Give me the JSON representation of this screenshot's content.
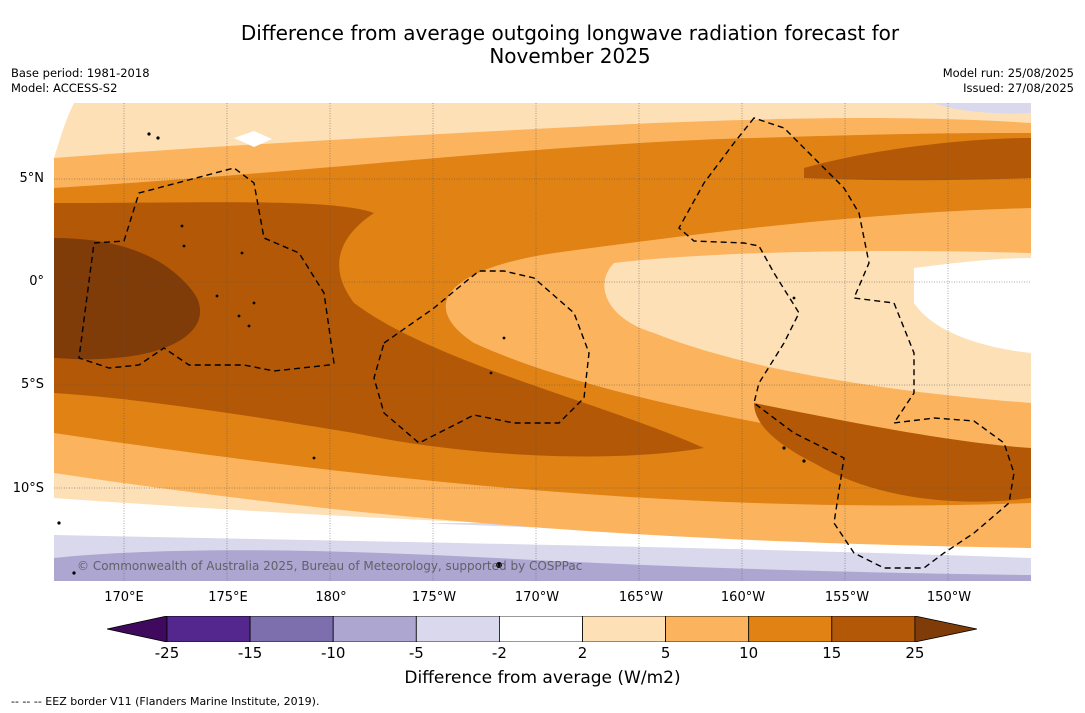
{
  "title_line1": "Difference from average outgoing longwave radiation forecast for",
  "title_line2": "November 2025",
  "base_period": "Base period: 1981-2018",
  "model": "Model: ACCESS-S2",
  "model_run": "Model run: 25/08/2025",
  "issued": "Issued: 27/08/2025",
  "lat_labels": [
    "5°N",
    "0°",
    "5°S",
    "10°S"
  ],
  "lon_labels": [
    "170°E",
    "175°E",
    "180°",
    "175°W",
    "170°W",
    "165°W",
    "160°W",
    "155°W",
    "150°W"
  ],
  "copyright": "© Commonwealth of Australia 2025, Bureau of Meteorology, supported by COSPPac",
  "colorbar": {
    "ticks": [
      "-25",
      "-15",
      "-10",
      "-5",
      "-2",
      "2",
      "5",
      "10",
      "15",
      "25"
    ],
    "colors": [
      "#3f0a5e",
      "#54278f",
      "#7d6fae",
      "#aca6d1",
      "#d9d8ec",
      "#ffffff",
      "#fde0b6",
      "#fbb35e",
      "#e08214",
      "#b35806",
      "#7f3b08"
    ],
    "label": "Difference from average (W/m2)"
  },
  "legend_note": "-- -- -- EEZ border V11 (Flanders Marine Institute, 2019)."
}
